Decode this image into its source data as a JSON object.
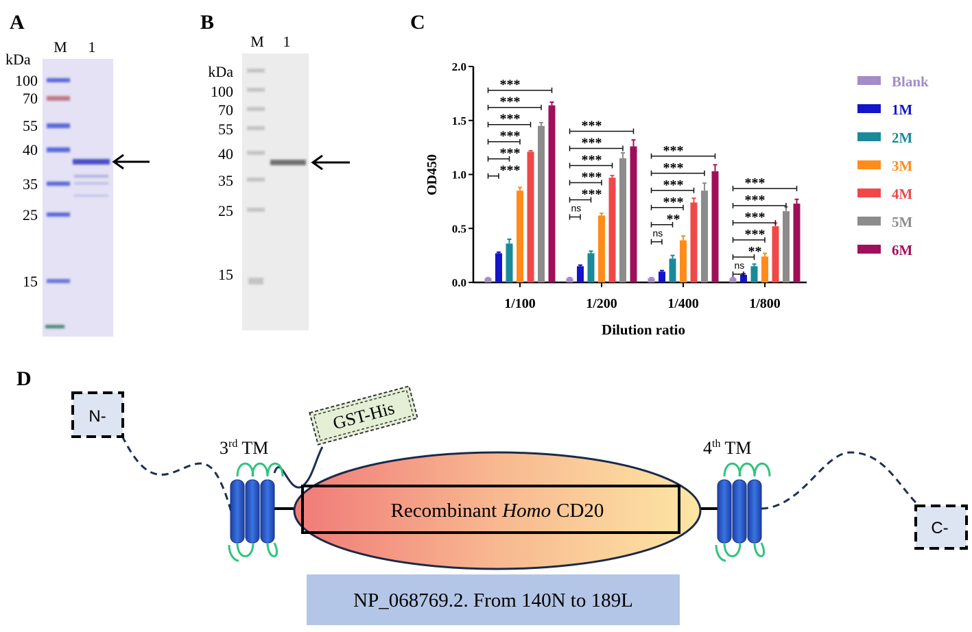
{
  "panel_a": {
    "label": "A",
    "lanes": [
      "M",
      "1"
    ],
    "unit": "kDa",
    "markers": [
      100,
      70,
      55,
      40,
      35,
      25,
      15
    ]
  },
  "panel_b": {
    "label": "B",
    "lanes": [
      "M",
      "1"
    ],
    "unit": "kDa",
    "markers": [
      100,
      70,
      55,
      40,
      35,
      25,
      15
    ]
  },
  "chart_data": {
    "type": "bar",
    "label": "C",
    "x_label": "Dilution ratio",
    "y_label": "OD450",
    "categories": [
      "1/100",
      "1/200",
      "1/400",
      "1/800"
    ],
    "series": [
      {
        "name": "Blank",
        "color": "#a38cc8",
        "values": [
          0.04,
          0.04,
          0.04,
          0.04
        ],
        "errors": [
          0.005,
          0.005,
          0.005,
          0.005
        ]
      },
      {
        "name": "1M",
        "color": "#1414c8",
        "values": [
          0.27,
          0.15,
          0.1,
          0.07
        ],
        "errors": [
          0.01,
          0.01,
          0.01,
          0.01
        ]
      },
      {
        "name": "2M",
        "color": "#1a8a9a",
        "values": [
          0.36,
          0.27,
          0.22,
          0.15
        ],
        "errors": [
          0.04,
          0.02,
          0.03,
          0.02
        ]
      },
      {
        "name": "3M",
        "color": "#ff8c1a",
        "values": [
          0.85,
          0.62,
          0.39,
          0.24
        ],
        "errors": [
          0.03,
          0.02,
          0.04,
          0.03
        ]
      },
      {
        "name": "4M",
        "color": "#f04848",
        "values": [
          1.21,
          0.97,
          0.74,
          0.52
        ],
        "errors": [
          0.01,
          0.02,
          0.04,
          0.03
        ]
      },
      {
        "name": "5M",
        "color": "#8c8c8c",
        "values": [
          1.45,
          1.15,
          0.85,
          0.66
        ],
        "errors": [
          0.03,
          0.05,
          0.07,
          0.04
        ]
      },
      {
        "name": "6M",
        "color": "#a0105a",
        "values": [
          1.64,
          1.26,
          1.03,
          0.73
        ],
        "errors": [
          0.03,
          0.06,
          0.06,
          0.04
        ]
      }
    ],
    "significance": [
      [
        "***",
        "***",
        "***",
        "***",
        "***",
        "***"
      ],
      [
        "ns",
        "***",
        "***",
        "***",
        "***",
        "***"
      ],
      [
        "ns",
        "**",
        "***",
        "***",
        "***",
        "***"
      ],
      [
        "ns",
        "**",
        "***",
        "***",
        "***",
        "***"
      ]
    ],
    "ylim": [
      0,
      2
    ],
    "yticks": [
      {
        "value": 0,
        "label": "0.0"
      },
      {
        "value": 0.5,
        "label": "0.5"
      },
      {
        "value": 1,
        "label": "1.0"
      },
      {
        "value": 1.5,
        "label": "1.5"
      },
      {
        "value": 2,
        "label": "2.0"
      }
    ]
  },
  "panel_d": {
    "label": "D",
    "n_terminus": "N-",
    "tag": "GST-His",
    "tm_left": {
      "ordinal": "3",
      "suffix": "rd",
      "name": "TM"
    },
    "tm_right": {
      "ordinal": "4",
      "suffix": "th",
      "name": "TM"
    },
    "protein": [
      "Recombinant",
      "Homo",
      "CD20"
    ],
    "c_terminus": "C-",
    "accession": "NP_068769.2. From 140N to 189L"
  }
}
